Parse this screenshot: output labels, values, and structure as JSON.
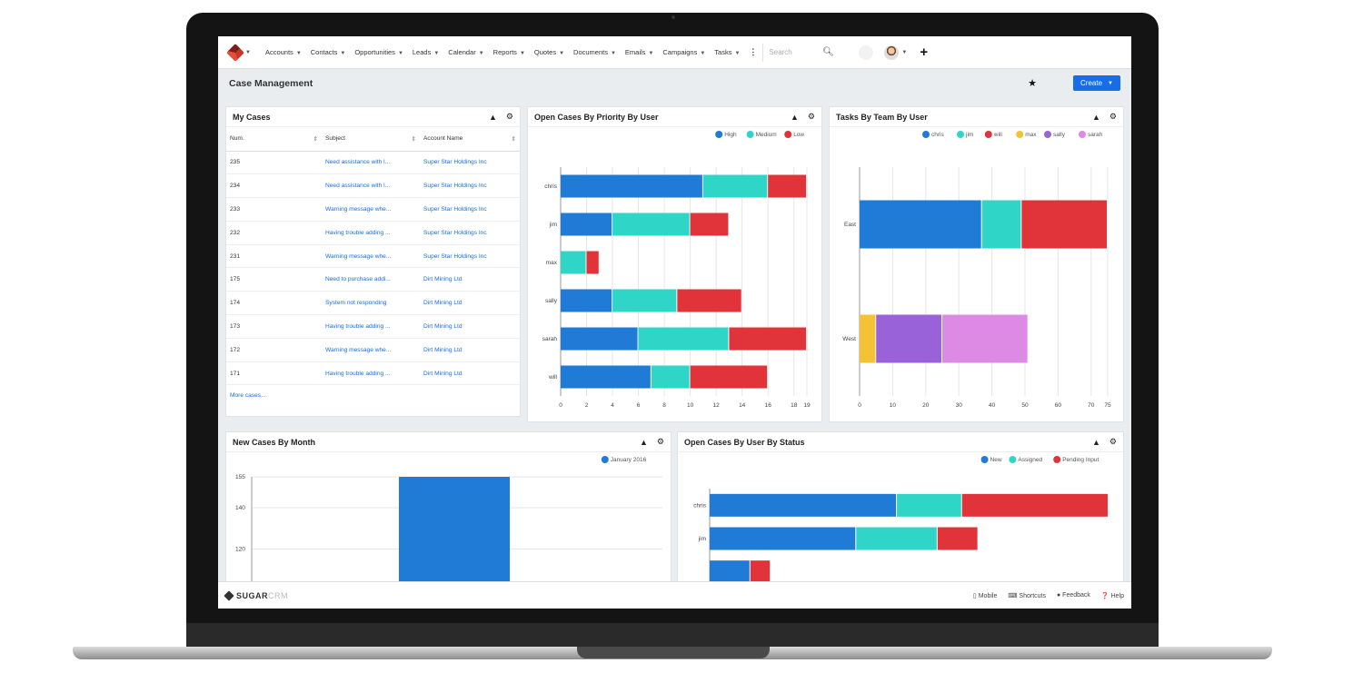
{
  "nav": {
    "modules": [
      "Accounts",
      "Contacts",
      "Opportunities",
      "Leads",
      "Calendar",
      "Reports",
      "Quotes",
      "Documents",
      "Emails",
      "Campaigns",
      "Tasks"
    ],
    "more": "⋮",
    "search_placeholder": "Search"
  },
  "header": {
    "title": "Case Management",
    "create_label": "Create"
  },
  "my_cases": {
    "title": "My Cases",
    "columns": [
      "Num.",
      "Subject",
      "Account Name"
    ],
    "rows": [
      [
        "235",
        "Need assistance with l...",
        "Super Star Holdings Inc"
      ],
      [
        "234",
        "Need assistance with l...",
        "Super Star Holdings Inc"
      ],
      [
        "233",
        "Warning message whe...",
        "Super Star Holdings Inc"
      ],
      [
        "232",
        "Having trouble adding ...",
        "Super Star Holdings Inc"
      ],
      [
        "231",
        "Warning message whe...",
        "Super Star Holdings Inc"
      ],
      [
        "175",
        "Need to purchase addi...",
        "Dirt Mining Ltd"
      ],
      [
        "174",
        "System not responding",
        "Dirt Mining Ltd"
      ],
      [
        "173",
        "Having trouble adding ...",
        "Dirt Mining Ltd"
      ],
      [
        "172",
        "Warning message whe...",
        "Dirt Mining Ltd"
      ],
      [
        "171",
        "Having trouble adding ...",
        "Dirt Mining Ltd"
      ]
    ],
    "more_label": "More cases..."
  },
  "priority": {
    "title": "Open Cases By Priority By User"
  },
  "tasks": {
    "title": "Tasks By Team By User"
  },
  "monthly": {
    "title": "New Cases By Month"
  },
  "status": {
    "title": "Open Cases By User By Status"
  },
  "footer": {
    "brand": "SUGAR",
    "brand_suffix": "CRM",
    "mobile": "Mobile",
    "shortcuts": "Shortcuts",
    "feedback": "Feedback",
    "help": "Help"
  },
  "colors": {
    "blue": "#1f7bd6",
    "teal": "#2fd6c7",
    "red": "#e0343a",
    "yellow": "#f3c335",
    "purple": "#9a62d9",
    "pink": "#dc8ae3"
  },
  "chart_data": [
    {
      "id": "priority",
      "type": "bar",
      "orientation": "horizontal",
      "stacked": true,
      "categories": [
        "chris",
        "jim",
        "max",
        "sally",
        "sarah",
        "will"
      ],
      "series": [
        {
          "name": "High",
          "color": "#1f7bd6",
          "values": [
            11,
            4,
            0,
            4,
            6,
            7
          ]
        },
        {
          "name": "Medium",
          "color": "#2fd6c7",
          "values": [
            5,
            6,
            2,
            5,
            7,
            3
          ]
        },
        {
          "name": "Low",
          "color": "#e0343a",
          "values": [
            3,
            3,
            1,
            5,
            6,
            6
          ]
        }
      ],
      "xticks": [
        "0",
        "2",
        "4",
        "6",
        "8",
        "10",
        "12",
        "14",
        "16",
        "18",
        "19"
      ],
      "xlim": [
        0,
        19
      ],
      "legend_position": "top-right"
    },
    {
      "id": "tasks",
      "type": "bar",
      "orientation": "horizontal",
      "stacked": true,
      "categories": [
        "East",
        "West"
      ],
      "series": [
        {
          "name": "chris",
          "color": "#1f7bd6",
          "values": [
            37,
            0
          ]
        },
        {
          "name": "jim",
          "color": "#2fd6c7",
          "values": [
            12,
            0
          ]
        },
        {
          "name": "will",
          "color": "#e0343a",
          "values": [
            26,
            0
          ]
        },
        {
          "name": "max",
          "color": "#f3c335",
          "values": [
            0,
            5
          ]
        },
        {
          "name": "sally",
          "color": "#9a62d9",
          "values": [
            0,
            20
          ]
        },
        {
          "name": "sarah",
          "color": "#dc8ae3",
          "values": [
            0,
            26
          ]
        }
      ],
      "xticks": [
        "0",
        "10",
        "20",
        "30",
        "40",
        "50",
        "60",
        "70",
        "75"
      ],
      "xlim": [
        0,
        75
      ],
      "legend_position": "top-right"
    },
    {
      "id": "monthly",
      "type": "bar",
      "orientation": "vertical",
      "categories": [
        "January 2016"
      ],
      "series": [
        {
          "name": "January 2016",
          "color": "#1f7bd6",
          "values": [
            155
          ]
        }
      ],
      "yticks": [
        "155",
        "140",
        "120",
        "100"
      ],
      "ylim": [
        92,
        155
      ],
      "legend_position": "top-right"
    },
    {
      "id": "status",
      "type": "bar",
      "orientation": "horizontal",
      "stacked": true,
      "categories": [
        "chris",
        "jim",
        ""
      ],
      "series": [
        {
          "name": "New",
          "color": "#1f7bd6",
          "values": [
            23,
            18,
            5
          ]
        },
        {
          "name": "Assigned",
          "color": "#2fd6c7",
          "values": [
            8,
            10,
            0
          ]
        },
        {
          "name": "Pending Input",
          "color": "#e0343a",
          "values": [
            18,
            5,
            2.5
          ]
        }
      ],
      "xlim": [
        0,
        49
      ],
      "legend_position": "top-right"
    }
  ]
}
